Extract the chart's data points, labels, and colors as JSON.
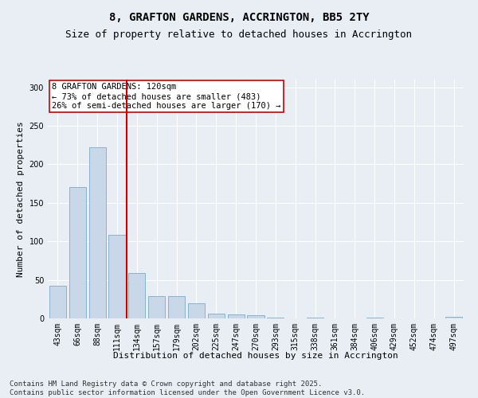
{
  "title": "8, GRAFTON GARDENS, ACCRINGTON, BB5 2TY",
  "subtitle": "Size of property relative to detached houses in Accrington",
  "xlabel": "Distribution of detached houses by size in Accrington",
  "ylabel": "Number of detached properties",
  "categories": [
    "43sqm",
    "66sqm",
    "88sqm",
    "111sqm",
    "134sqm",
    "157sqm",
    "179sqm",
    "202sqm",
    "225sqm",
    "247sqm",
    "270sqm",
    "293sqm",
    "315sqm",
    "338sqm",
    "361sqm",
    "384sqm",
    "406sqm",
    "429sqm",
    "452sqm",
    "474sqm",
    "497sqm"
  ],
  "values": [
    42,
    170,
    222,
    109,
    59,
    29,
    29,
    20,
    6,
    5,
    4,
    1,
    0,
    1,
    0,
    0,
    1,
    0,
    0,
    0,
    2
  ],
  "bar_color": "#c8d8e8",
  "bar_edge_color": "#7aaac8",
  "vline_color": "#cc0000",
  "vline_x_index": 3.5,
  "annotation_title": "8 GRAFTON GARDENS: 120sqm",
  "annotation_line2": "← 73% of detached houses are smaller (483)",
  "annotation_line3": "26% of semi-detached houses are larger (170) →",
  "annotation_box_color": "#ffffff",
  "annotation_box_edge": "#cc0000",
  "ylim": [
    0,
    310
  ],
  "yticks": [
    0,
    50,
    100,
    150,
    200,
    250,
    300
  ],
  "background_color": "#e8eef4",
  "grid_color": "#ffffff",
  "footer_line1": "Contains HM Land Registry data © Crown copyright and database right 2025.",
  "footer_line2": "Contains public sector information licensed under the Open Government Licence v3.0.",
  "title_fontsize": 10,
  "subtitle_fontsize": 9,
  "axis_label_fontsize": 8,
  "tick_fontsize": 7,
  "annotation_fontsize": 7.5,
  "footer_fontsize": 6.5
}
